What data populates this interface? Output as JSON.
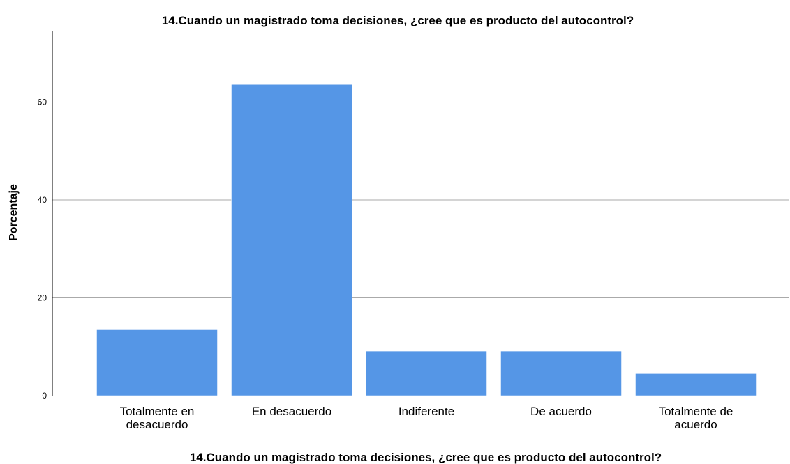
{
  "chart_data": {
    "type": "bar",
    "title": "14.Cuando un magistrado toma decisiones, ¿cree que es producto del autocontrol?",
    "xlabel": "14.Cuando un magistrado toma decisiones, ¿cree que es producto del autocontrol?",
    "ylabel": "Porcentaje",
    "categories": [
      [
        "Totalmente en",
        "desacuerdo"
      ],
      [
        "En desacuerdo"
      ],
      [
        "Indiferente"
      ],
      [
        "De acuerdo"
      ],
      [
        "Totalmente de",
        "acuerdo"
      ]
    ],
    "values": [
      13.6,
      63.6,
      9.1,
      9.1,
      4.5
    ],
    "ylim": [
      0,
      74.6
    ],
    "yticks": [
      "0",
      "20",
      "40",
      "60"
    ],
    "grid": true,
    "bar_color": "#5596e6",
    "grid_color": "#aaaaaa"
  }
}
